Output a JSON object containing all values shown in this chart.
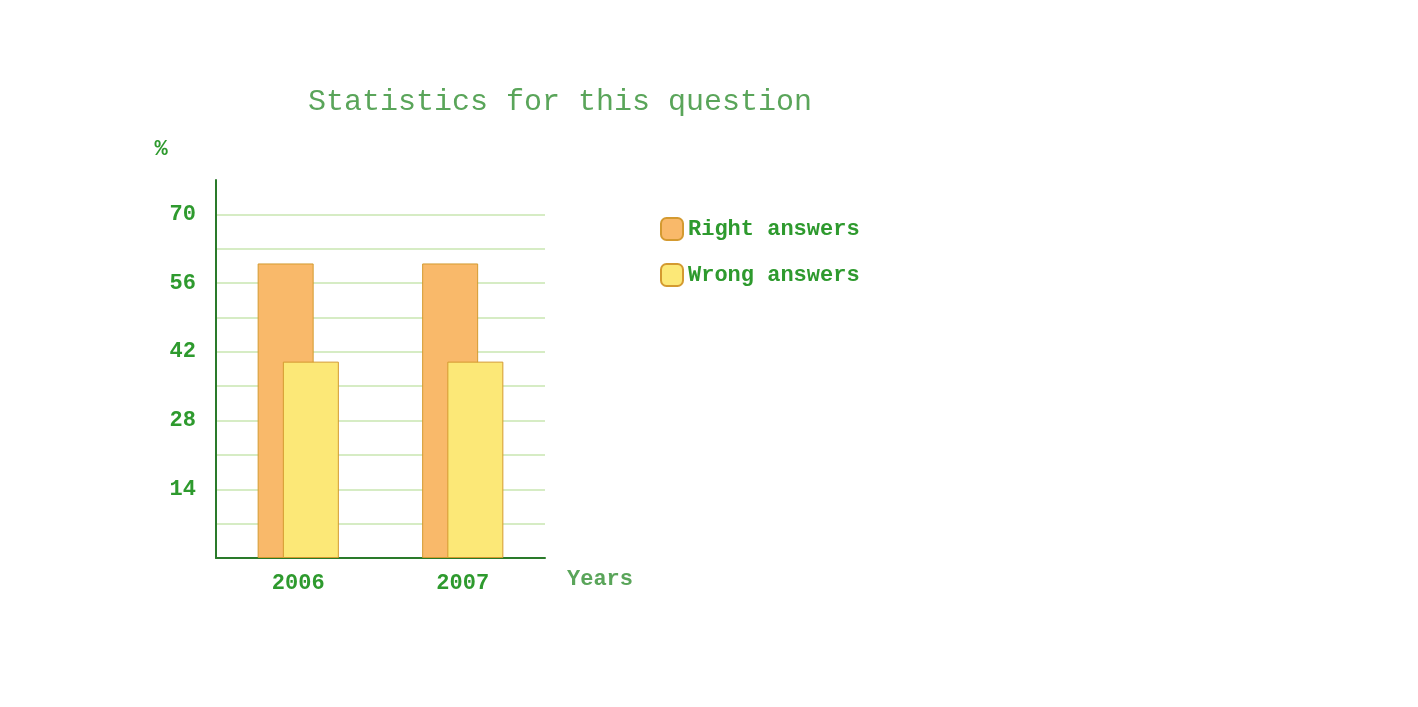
{
  "chart_data": {
    "type": "bar",
    "title": "Statistics for this question",
    "xlabel": "Years",
    "ylabel": "%",
    "categories": [
      "2006",
      "2007"
    ],
    "series": [
      {
        "name": "Right answers",
        "color": "#f9b96a",
        "values": [
          60,
          60
        ]
      },
      {
        "name": "Wrong answers",
        "color": "#fce877",
        "values": [
          40,
          40
        ]
      }
    ],
    "ylim": [
      0,
      77
    ],
    "yticks": [
      {
        "value": 7,
        "label": null
      },
      14,
      {
        "value": 21,
        "label": null
      },
      28,
      {
        "value": 35,
        "label": null
      },
      42,
      {
        "value": 49,
        "label": null
      },
      56,
      {
        "value": 63,
        "label": null
      },
      70
    ],
    "grid": "y",
    "legend": "right"
  }
}
